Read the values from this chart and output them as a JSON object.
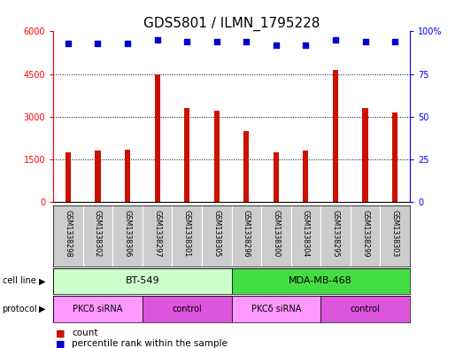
{
  "title": "GDS5801 / ILMN_1795228",
  "samples": [
    "GSM1338298",
    "GSM1338302",
    "GSM1338306",
    "GSM1338297",
    "GSM1338301",
    "GSM1338305",
    "GSM1338296",
    "GSM1338300",
    "GSM1338304",
    "GSM1338295",
    "GSM1338299",
    "GSM1338303"
  ],
  "counts": [
    1750,
    1800,
    1850,
    4500,
    3300,
    3200,
    2500,
    1750,
    1800,
    4650,
    3300,
    3150
  ],
  "percentiles": [
    93,
    93,
    93,
    95,
    94,
    94,
    94,
    92,
    92,
    95,
    94,
    94
  ],
  "bar_color": "#cc1100",
  "dot_color": "#0000cc",
  "ylim_left": [
    0,
    6000
  ],
  "ylim_right": [
    0,
    100
  ],
  "yticks_left": [
    0,
    1500,
    3000,
    4500,
    6000
  ],
  "ytick_labels_left": [
    "0",
    "1500",
    "3000",
    "4500",
    "6000"
  ],
  "yticks_right": [
    0,
    25,
    50,
    75,
    100
  ],
  "ytick_labels_right": [
    "0",
    "25",
    "50",
    "75",
    "100%"
  ],
  "cell_line_groups": [
    {
      "label": "BT-549",
      "start": 0,
      "end": 5,
      "color": "#ccffcc"
    },
    {
      "label": "MDA-MB-468",
      "start": 6,
      "end": 11,
      "color": "#44dd44"
    }
  ],
  "protocol_groups": [
    {
      "label": "PKCδ siRNA",
      "start": 0,
      "end": 2,
      "color": "#ff99ff"
    },
    {
      "label": "control",
      "start": 3,
      "end": 5,
      "color": "#dd55dd"
    },
    {
      "label": "PKCδ siRNA",
      "start": 6,
      "end": 8,
      "color": "#ff99ff"
    },
    {
      "label": "control",
      "start": 9,
      "end": 11,
      "color": "#dd55dd"
    }
  ],
  "legend_count_label": "count",
  "legend_pct_label": "percentile rank within the sample",
  "cell_line_label": "cell line",
  "protocol_label": "protocol",
  "bg_color": "#ffffff",
  "sample_bg_color": "#cccccc",
  "grid_color": "#000000",
  "title_fontsize": 11,
  "tick_fontsize": 7,
  "label_fontsize": 8,
  "bar_width": 0.18
}
